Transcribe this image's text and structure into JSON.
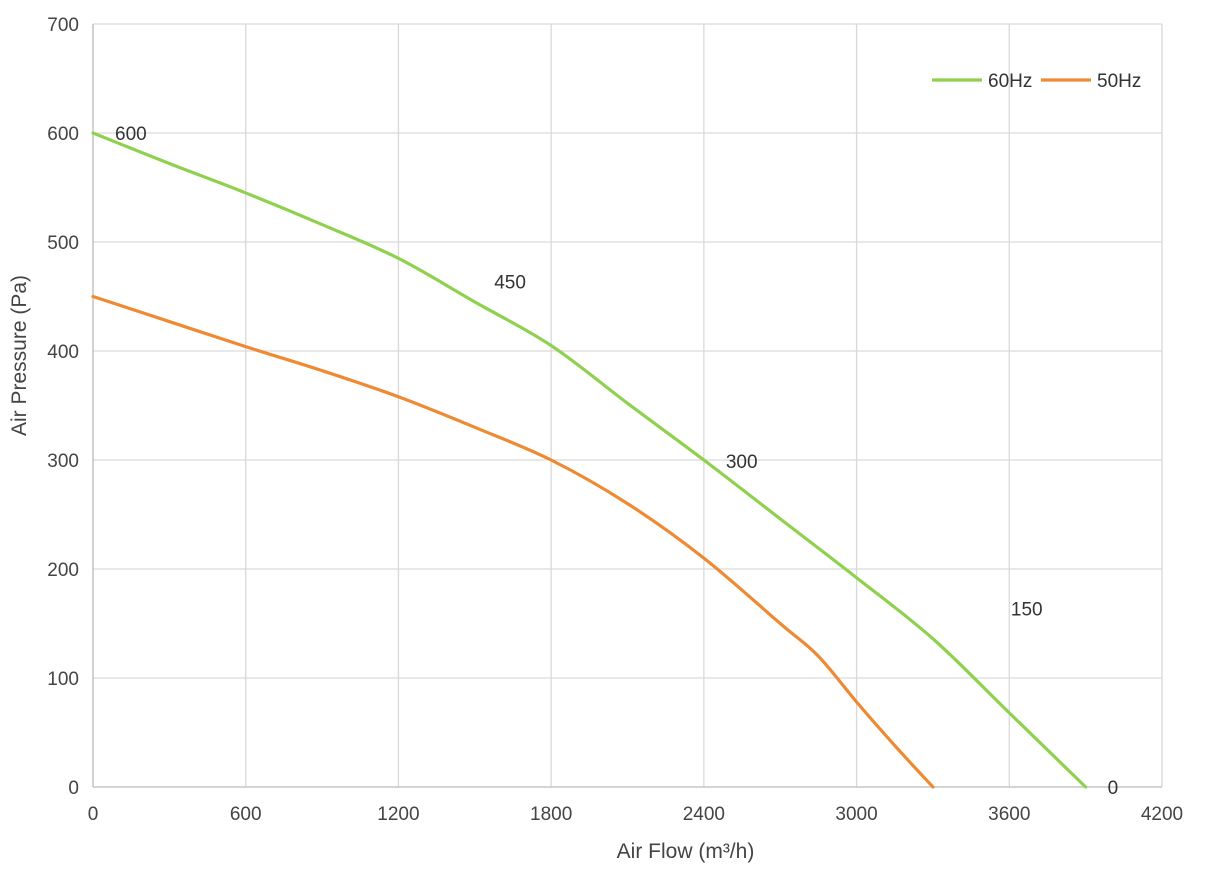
{
  "chart_data": {
    "type": "line",
    "title": "",
    "xlabel": "Air Flow  (m³/h)",
    "ylabel": "Air Pressure  (Pa)",
    "xlim": [
      0,
      4200
    ],
    "ylim": [
      0,
      700
    ],
    "xticks": [
      0,
      600,
      1200,
      1800,
      2400,
      3000,
      3600,
      4200
    ],
    "yticks": [
      0,
      100,
      200,
      300,
      400,
      500,
      600,
      700
    ],
    "grid": true,
    "legend_position": "top-right",
    "series": [
      {
        "name": "60Hz",
        "color": "#8fd14f",
        "points": [
          [
            0,
            600
          ],
          [
            300,
            572
          ],
          [
            600,
            545
          ],
          [
            900,
            516
          ],
          [
            1200,
            485
          ],
          [
            1500,
            445
          ],
          [
            1800,
            405
          ],
          [
            2100,
            352
          ],
          [
            2400,
            300
          ],
          [
            2700,
            246
          ],
          [
            3000,
            192
          ],
          [
            3300,
            136
          ],
          [
            3600,
            68
          ],
          [
            3900,
            0
          ]
        ]
      },
      {
        "name": "50Hz",
        "color": "#ee8a33",
        "points": [
          [
            0,
            450
          ],
          [
            300,
            427
          ],
          [
            600,
            404
          ],
          [
            900,
            382
          ],
          [
            1200,
            358
          ],
          [
            1500,
            330
          ],
          [
            1800,
            300
          ],
          [
            2100,
            260
          ],
          [
            2400,
            210
          ],
          [
            2700,
            150
          ],
          [
            2850,
            120
          ],
          [
            3000,
            78
          ],
          [
            3150,
            38
          ],
          [
            3300,
            0
          ]
        ]
      }
    ],
    "point_labels": [
      {
        "text": "600",
        "x": 0,
        "y": 600
      },
      {
        "text": "450",
        "x": 1600,
        "y": 450
      },
      {
        "text": "300",
        "x": 2400,
        "y": 300
      },
      {
        "text": "150",
        "x": 3300,
        "y": 150
      },
      {
        "text": "0",
        "x": 3900,
        "y": 0
      }
    ]
  }
}
